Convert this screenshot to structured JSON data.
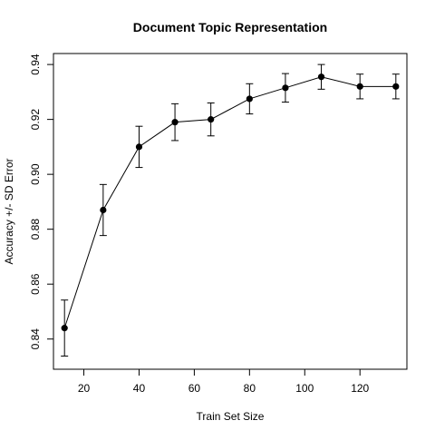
{
  "chart_data": {
    "type": "line",
    "title": "Document Topic Representation",
    "xlabel": "Train Set Size",
    "ylabel": "Accuracy +/- SD Error",
    "xlim": [
      9,
      137
    ],
    "ylim": [
      0.829,
      0.944
    ],
    "xticks": [
      20,
      40,
      60,
      80,
      100,
      120
    ],
    "yticks": [
      0.84,
      0.86,
      0.88,
      0.9,
      0.92,
      0.94
    ],
    "ytick_labels": [
      "0.84",
      "0.86",
      "0.88",
      "0.90",
      "0.92",
      "0.94"
    ],
    "grid": false,
    "legend": "none",
    "line_color": "#000000",
    "point_color": "#000000",
    "series": [
      {
        "x": [
          13,
          27,
          40,
          53,
          66,
          80,
          93,
          106,
          120,
          133
        ],
        "y": [
          0.844,
          0.887,
          0.91,
          0.919,
          0.92,
          0.9275,
          0.9315,
          0.9355,
          0.932,
          0.932
        ],
        "err": [
          0.0102,
          0.0093,
          0.0075,
          0.0067,
          0.006,
          0.0055,
          0.0052,
          0.0045,
          0.0045,
          0.0045
        ]
      }
    ]
  }
}
